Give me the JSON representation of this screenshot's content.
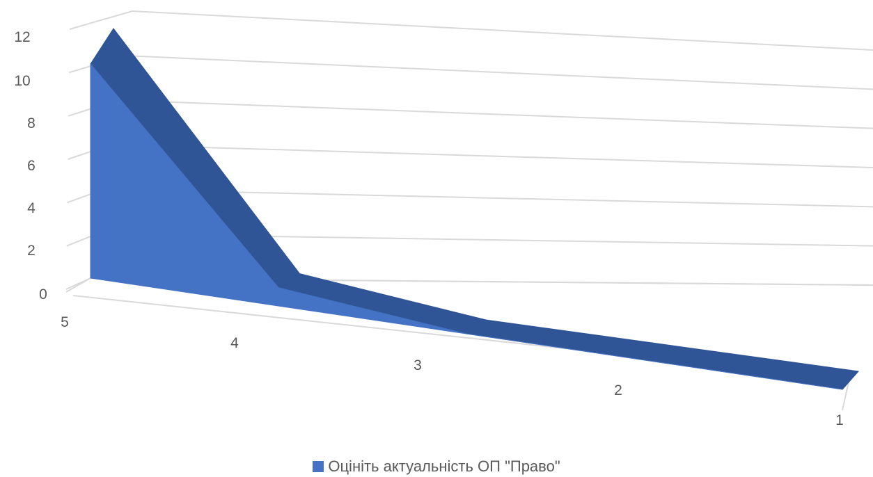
{
  "chart_data": {
    "type": "area",
    "three_d": true,
    "categories": [
      "5",
      "4",
      "3",
      "2",
      "1"
    ],
    "series": [
      {
        "name": "Оцініть актуальність ОП \"Право\"",
        "values": [
          11,
          1,
          0,
          0,
          0
        ],
        "color": "#4472c4"
      }
    ],
    "y_ticks": [
      "0",
      "2",
      "4",
      "6",
      "8",
      "10",
      "12"
    ],
    "ylim": [
      0,
      12
    ],
    "grid": true,
    "legend_position": "bottom",
    "colors": {
      "front": "#4472c4",
      "top": "#2f5597",
      "gridline": "#d9d9d9",
      "tick_text": "#595959"
    }
  }
}
